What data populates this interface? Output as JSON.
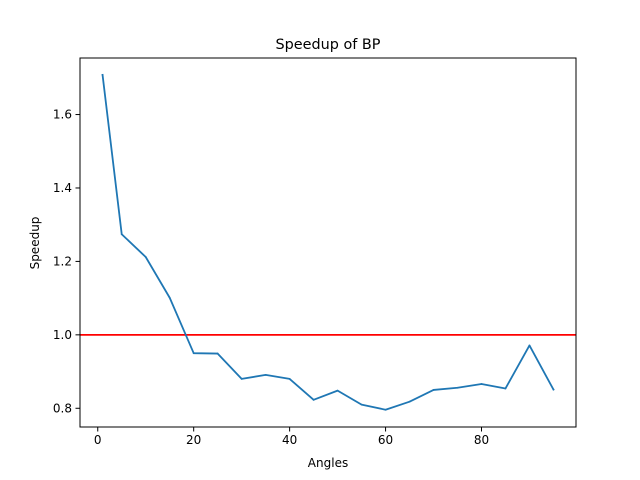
{
  "chart_data": {
    "type": "line",
    "title": "Speedup of BP",
    "xlabel": "Angles",
    "ylabel": "Speedup",
    "xlim": [
      -3.7,
      99.7
    ],
    "ylim": [
      0.749,
      1.754
    ],
    "xticks": [
      0,
      20,
      40,
      60,
      80
    ],
    "yticks": [
      0.8,
      1.0,
      1.2,
      1.4,
      1.6
    ],
    "xtick_labels": [
      "0",
      "20",
      "40",
      "60",
      "80"
    ],
    "ytick_labels": [
      "0.8",
      "1.0",
      "1.2",
      "1.4",
      "1.6"
    ],
    "grid": false,
    "series": [
      {
        "color": "#1f77b4",
        "x": [
          1,
          5,
          10,
          15,
          20,
          25,
          30,
          35,
          40,
          45,
          50,
          55,
          60,
          65,
          70,
          75,
          80,
          85,
          90,
          95
        ],
        "y": [
          1.708,
          1.274,
          1.212,
          1.101,
          0.95,
          0.949,
          0.88,
          0.891,
          0.88,
          0.823,
          0.848,
          0.81,
          0.796,
          0.818,
          0.85,
          0.856,
          0.866,
          0.854,
          0.971,
          0.851
        ]
      }
    ],
    "reference_line": {
      "orientation": "horizontal",
      "y": 1.0,
      "color": "#ff0000"
    }
  }
}
